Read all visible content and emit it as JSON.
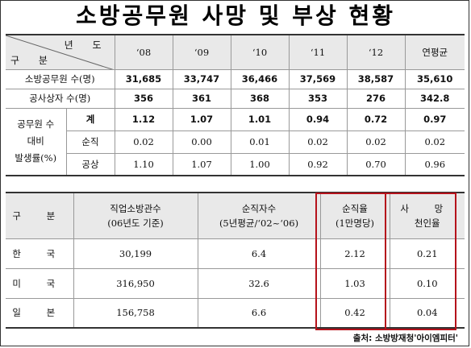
{
  "title": "소방공무원 사망 및 부상 현황",
  "table1": {
    "corner_top": "년 도",
    "corner_bottom": "구 분",
    "years": [
      "‘08",
      "‘09",
      "‘10",
      "‘11",
      "‘12",
      "연평균"
    ],
    "rows": [
      {
        "label": "소방공무원 수(명)",
        "values": [
          "31,685",
          "33,747",
          "36,466",
          "37,569",
          "38,587",
          "35,610"
        ]
      },
      {
        "label": "공사상자 수(명)",
        "values": [
          "356",
          "361",
          "368",
          "353",
          "276",
          "342.8"
        ]
      }
    ],
    "group_label_lines": [
      "공무원 수",
      "대비",
      "발생률(%)"
    ],
    "subrows": [
      {
        "label": "계",
        "values": [
          "1.12",
          "1.07",
          "1.01",
          "0.94",
          "0.72",
          "0.97"
        ]
      },
      {
        "label": "순직",
        "values": [
          "0.02",
          "0.00",
          "0.01",
          "0.02",
          "0.02",
          "0.02"
        ]
      },
      {
        "label": "공상",
        "values": [
          "1.10",
          "1.07",
          "1.00",
          "0.92",
          "0.70",
          "0.96"
        ]
      }
    ]
  },
  "table2": {
    "headers": [
      {
        "lines": [
          "구 분"
        ]
      },
      {
        "lines": [
          "직업소방관수",
          "(06년도 기준)"
        ]
      },
      {
        "lines": [
          "순직자수",
          "(5년평균/‘02~‘06)"
        ]
      },
      {
        "lines": [
          "순직율",
          "(1만명당)"
        ]
      },
      {
        "lines": [
          "사 망",
          "천인율"
        ]
      }
    ],
    "rows": [
      {
        "country": "한 국",
        "values": [
          "30,199",
          "6.4",
          "2.12",
          "0.21"
        ]
      },
      {
        "country": "미 국",
        "values": [
          "316,950",
          "32.6",
          "1.03",
          "0.10"
        ]
      },
      {
        "country": "일 본",
        "values": [
          "156,758",
          "6.6",
          "0.42",
          "0.04"
        ]
      }
    ]
  },
  "source": "출처: 소방방재청'아이엠피터'",
  "colors": {
    "header_bg": "#e9e9e9",
    "highlight": "#b5121b"
  }
}
